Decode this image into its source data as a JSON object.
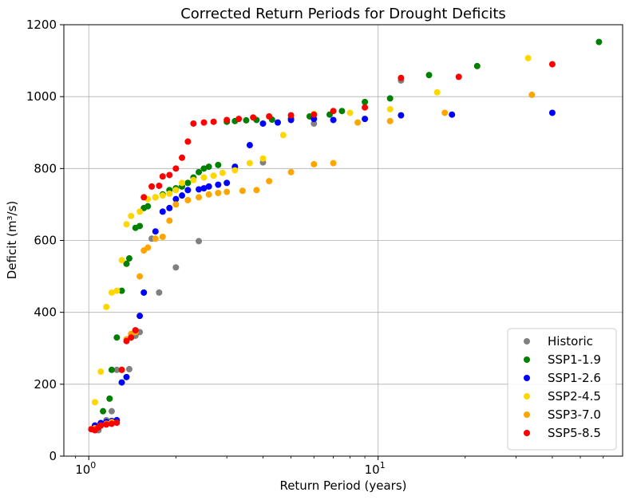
{
  "chart_data": {
    "type": "scatter",
    "title": "Corrected Return Periods for Drought Deficits",
    "xlabel": "Return Period (years)",
    "ylabel": "Deficit (m³/s)",
    "xscale": "log",
    "xlim": [
      0.82,
      70
    ],
    "ylim": [
      0,
      1200
    ],
    "xticks": [
      {
        "value": 1,
        "base": "10",
        "exp": "0"
      },
      {
        "value": 10,
        "base": "10",
        "exp": "1"
      }
    ],
    "yticks": [
      0,
      200,
      400,
      600,
      800,
      1000,
      1200
    ],
    "grid": true,
    "legend_position": "lower-right",
    "series": [
      {
        "name": "Historic",
        "color": "#808080",
        "points": [
          [
            1.05,
            80
          ],
          [
            1.08,
            72
          ],
          [
            1.1,
            90
          ],
          [
            1.15,
            100
          ],
          [
            1.2,
            125
          ],
          [
            1.25,
            240
          ],
          [
            1.38,
            242
          ],
          [
            1.45,
            335
          ],
          [
            1.5,
            345
          ],
          [
            1.65,
            605
          ],
          [
            1.75,
            455
          ],
          [
            2.0,
            525
          ],
          [
            2.4,
            598
          ],
          [
            4.0,
            817
          ],
          [
            6.0,
            925
          ],
          [
            12.0,
            1045
          ]
        ]
      },
      {
        "name": "SSP1-1.9",
        "color": "#008000",
        "points": [
          [
            1.05,
            85
          ],
          [
            1.12,
            125
          ],
          [
            1.18,
            160
          ],
          [
            1.2,
            240
          ],
          [
            1.25,
            330
          ],
          [
            1.3,
            460
          ],
          [
            1.35,
            535
          ],
          [
            1.38,
            550
          ],
          [
            1.45,
            635
          ],
          [
            1.5,
            640
          ],
          [
            1.55,
            690
          ],
          [
            1.6,
            695
          ],
          [
            1.7,
            720
          ],
          [
            1.8,
            728
          ],
          [
            1.9,
            740
          ],
          [
            2.0,
            745
          ],
          [
            2.1,
            750
          ],
          [
            2.2,
            760
          ],
          [
            2.3,
            775
          ],
          [
            2.4,
            790
          ],
          [
            2.5,
            800
          ],
          [
            2.6,
            805
          ],
          [
            2.8,
            810
          ],
          [
            3.0,
            930
          ],
          [
            3.2,
            932
          ],
          [
            3.5,
            934
          ],
          [
            3.8,
            935
          ],
          [
            4.3,
            936
          ],
          [
            5.0,
            940
          ],
          [
            5.8,
            945
          ],
          [
            6.8,
            950
          ],
          [
            7.5,
            960
          ],
          [
            9.0,
            985
          ],
          [
            11.0,
            995
          ],
          [
            15.0,
            1060
          ],
          [
            22.0,
            1085
          ],
          [
            58.0,
            1152
          ]
        ]
      },
      {
        "name": "SSP1-2.6",
        "color": "#0000ff",
        "points": [
          [
            1.05,
            85
          ],
          [
            1.1,
            92
          ],
          [
            1.15,
            95
          ],
          [
            1.2,
            98
          ],
          [
            1.25,
            100
          ],
          [
            1.3,
            205
          ],
          [
            1.35,
            220
          ],
          [
            1.45,
            350
          ],
          [
            1.5,
            390
          ],
          [
            1.55,
            455
          ],
          [
            1.7,
            625
          ],
          [
            1.8,
            680
          ],
          [
            1.9,
            690
          ],
          [
            2.0,
            715
          ],
          [
            2.1,
            725
          ],
          [
            2.2,
            740
          ],
          [
            2.4,
            742
          ],
          [
            2.5,
            745
          ],
          [
            2.6,
            750
          ],
          [
            2.8,
            755
          ],
          [
            3.0,
            760
          ],
          [
            3.2,
            805
          ],
          [
            3.6,
            865
          ],
          [
            4.0,
            925
          ],
          [
            4.5,
            928
          ],
          [
            5.0,
            935
          ],
          [
            6.0,
            938
          ],
          [
            7.0,
            935
          ],
          [
            9.0,
            938
          ],
          [
            12.0,
            948
          ],
          [
            18.0,
            950
          ],
          [
            40.0,
            955
          ]
        ]
      },
      {
        "name": "SSP2-4.5",
        "color": "#ffd700",
        "points": [
          [
            1.05,
            150
          ],
          [
            1.1,
            235
          ],
          [
            1.15,
            415
          ],
          [
            1.2,
            455
          ],
          [
            1.25,
            460
          ],
          [
            1.3,
            545
          ],
          [
            1.35,
            645
          ],
          [
            1.4,
            668
          ],
          [
            1.5,
            680
          ],
          [
            1.6,
            715
          ],
          [
            1.7,
            720
          ],
          [
            1.8,
            725
          ],
          [
            1.9,
            730
          ],
          [
            2.0,
            740
          ],
          [
            2.1,
            760
          ],
          [
            2.3,
            768
          ],
          [
            2.5,
            775
          ],
          [
            2.7,
            780
          ],
          [
            2.9,
            788
          ],
          [
            3.2,
            795
          ],
          [
            3.6,
            815
          ],
          [
            4.0,
            828
          ],
          [
            4.7,
            893
          ],
          [
            6.0,
            952
          ],
          [
            8.0,
            955
          ],
          [
            11.0,
            965
          ],
          [
            16.0,
            1012
          ],
          [
            33.0,
            1107
          ]
        ]
      },
      {
        "name": "SSP3-7.0",
        "color": "#ffa500",
        "points": [
          [
            1.05,
            78
          ],
          [
            1.1,
            85
          ],
          [
            1.15,
            90
          ],
          [
            1.2,
            95
          ],
          [
            1.3,
            240
          ],
          [
            1.35,
            325
          ],
          [
            1.4,
            340
          ],
          [
            1.45,
            345
          ],
          [
            1.5,
            500
          ],
          [
            1.55,
            572
          ],
          [
            1.6,
            580
          ],
          [
            1.7,
            605
          ],
          [
            1.8,
            610
          ],
          [
            1.9,
            655
          ],
          [
            2.0,
            700
          ],
          [
            2.2,
            712
          ],
          [
            2.4,
            720
          ],
          [
            2.6,
            728
          ],
          [
            2.8,
            732
          ],
          [
            3.0,
            735
          ],
          [
            3.4,
            738
          ],
          [
            3.8,
            740
          ],
          [
            4.2,
            765
          ],
          [
            5.0,
            790
          ],
          [
            6.0,
            812
          ],
          [
            7.0,
            815
          ],
          [
            8.5,
            928
          ],
          [
            11.0,
            932
          ],
          [
            17.0,
            955
          ],
          [
            34.0,
            1005
          ]
        ]
      },
      {
        "name": "SSP5-8.5",
        "color": "#ff0000",
        "points": [
          [
            1.02,
            75
          ],
          [
            1.05,
            72
          ],
          [
            1.08,
            80
          ],
          [
            1.1,
            85
          ],
          [
            1.15,
            88
          ],
          [
            1.2,
            90
          ],
          [
            1.25,
            93
          ],
          [
            1.3,
            240
          ],
          [
            1.35,
            320
          ],
          [
            1.4,
            330
          ],
          [
            1.45,
            350
          ],
          [
            1.55,
            720
          ],
          [
            1.65,
            750
          ],
          [
            1.75,
            752
          ],
          [
            1.8,
            778
          ],
          [
            1.9,
            782
          ],
          [
            2.0,
            800
          ],
          [
            2.1,
            830
          ],
          [
            2.2,
            875
          ],
          [
            2.3,
            925
          ],
          [
            2.5,
            928
          ],
          [
            2.7,
            930
          ],
          [
            3.0,
            935
          ],
          [
            3.3,
            938
          ],
          [
            3.7,
            942
          ],
          [
            4.2,
            945
          ],
          [
            5.0,
            948
          ],
          [
            6.0,
            950
          ],
          [
            7.0,
            960
          ],
          [
            9.0,
            970
          ],
          [
            12.0,
            1052
          ],
          [
            19.0,
            1055
          ],
          [
            40.0,
            1090
          ]
        ]
      }
    ]
  }
}
